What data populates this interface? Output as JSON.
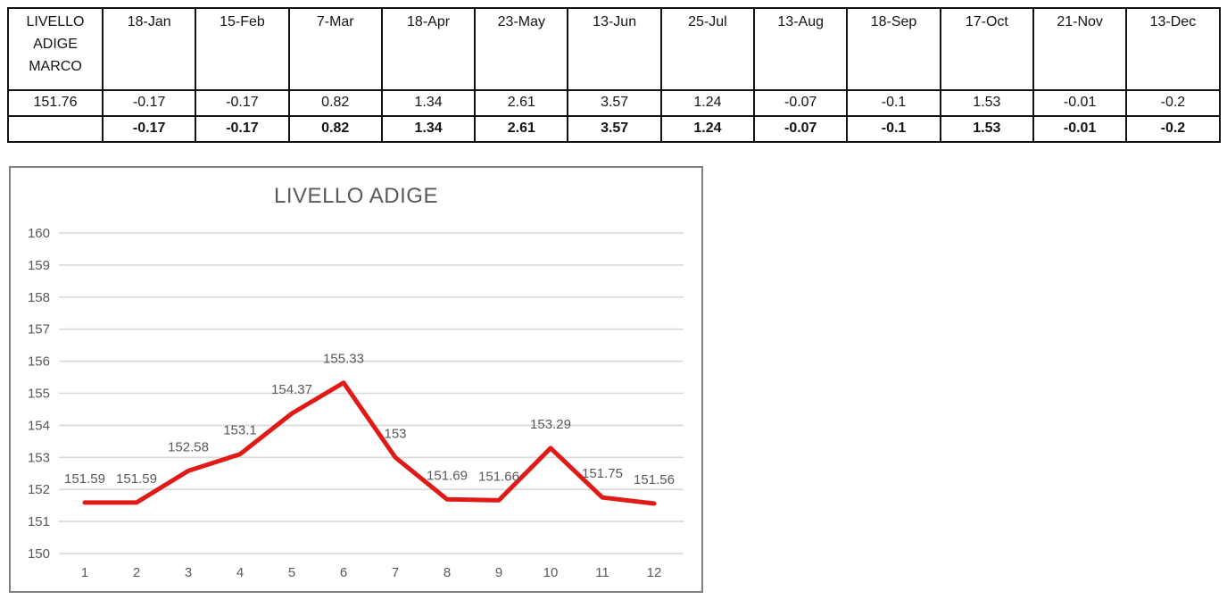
{
  "table": {
    "header": [
      "LIVELLO ADIGE MARCO",
      "18-Jan",
      "15-Feb",
      "7-Mar",
      "18-Apr",
      "23-May",
      "13-Jun",
      "25-Jul",
      "13-Aug",
      "18-Sep",
      "17-Oct",
      "21-Nov",
      "13-Dec"
    ],
    "rows": [
      [
        "151.76",
        "-0.17",
        "-0.17",
        "0.82",
        "1.34",
        "2.61",
        "3.57",
        "1.24",
        "-0.07",
        "-0.1",
        "1.53",
        "-0.01",
        "-0.2"
      ],
      [
        "",
        "-0.17",
        "-0.17",
        "0.82",
        "1.34",
        "2.61",
        "3.57",
        "1.24",
        "-0.07",
        "-0.1",
        "1.53",
        "-0.01",
        "-0.2"
      ]
    ]
  },
  "chart_data": {
    "type": "line",
    "title": "LIVELLO ADIGE",
    "categories": [
      "1",
      "2",
      "3",
      "4",
      "5",
      "6",
      "7",
      "8",
      "9",
      "10",
      "11",
      "12"
    ],
    "values": [
      151.59,
      151.59,
      152.58,
      153.1,
      154.37,
      155.33,
      153,
      151.69,
      151.66,
      153.29,
      151.75,
      151.56
    ],
    "point_labels": [
      "151.59",
      "151.59",
      "152.58",
      "153.1",
      "154.37",
      "155.33",
      "153",
      "151.69",
      "151.66",
      "153.29",
      "151.75",
      "151.56"
    ],
    "xlabel": "",
    "ylabel": "",
    "ylim": [
      150,
      160
    ],
    "ytick_step": 1,
    "yticks": [
      "150",
      "151",
      "152",
      "153",
      "154",
      "155",
      "156",
      "157",
      "158",
      "159",
      "160"
    ],
    "grid": "horizontal only",
    "legend": "none",
    "line_color": "#df1a17",
    "grid_color": "#d9d9d9",
    "text_color": "#595959",
    "frame_color": "#808080"
  }
}
